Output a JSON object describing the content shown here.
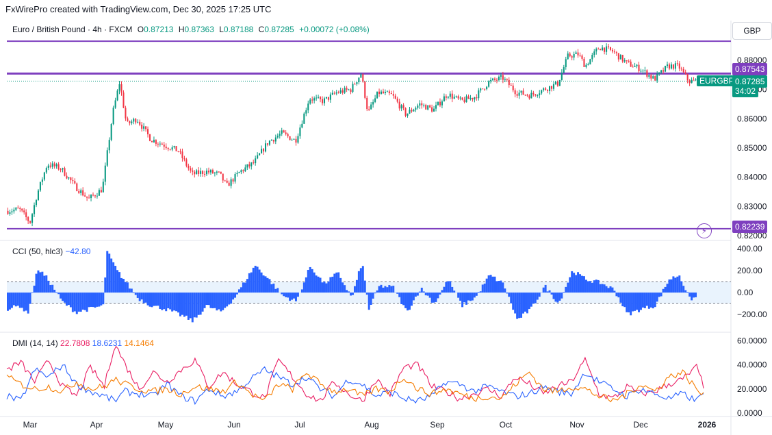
{
  "credit": "FxWirePro created with TradingView.com, Dec 30, 2025 17:25 UTC",
  "legend": {
    "symbol": "Euro / British Pound · 4h · FXCM",
    "o_label": "O",
    "o_value": "0.87213",
    "h_label": "H",
    "h_value": "0.87363",
    "l_label": "L",
    "l_value": "0.87188",
    "c_label": "C",
    "c_value": "0.87285",
    "change": "+0.00072 (+0.08%)"
  },
  "currency_button": "GBP",
  "price_tags": {
    "resistance": "0.87543",
    "current": "0.87285",
    "countdown": "34:02",
    "support": "0.82239",
    "symbol": "EURGBP"
  },
  "colors": {
    "up": "#089981",
    "down": "#f23645",
    "level_line": "#7e3fbf",
    "cci": "#2962ff",
    "dmi_plus": "#2962ff",
    "dmi_minus": "#e91e63",
    "adx": "#f57c00"
  },
  "cci_legend": {
    "label": "CCI (50, hlc3)",
    "value": "−42.80"
  },
  "dmi_legend": {
    "label": "DMI (14, 14)",
    "minus": "22.7808",
    "plus": "18.6231",
    "adx": "14.1464"
  },
  "chart_data": [
    {
      "type": "candlestick",
      "title": "Euro / British Pound · 4h · FXCM",
      "ylim": [
        0.8205,
        0.887
      ],
      "y_ticks": [
        "0.82000",
        "0.83000",
        "0.84000",
        "0.85000",
        "0.86000",
        "0.87000",
        "0.88000"
      ],
      "x_ticks": [
        "Mar",
        "Apr",
        "May",
        "Jun",
        "Jul",
        "Aug",
        "Sep",
        "Oct",
        "Nov",
        "Dec",
        "2026"
      ],
      "horizontal_levels": [
        0.87543,
        0.82239,
        0.8865
      ],
      "last_price": 0.87285,
      "path_anchors": [
        [
          0.0,
          0.8285
        ],
        [
          0.02,
          0.829
        ],
        [
          0.035,
          0.8245
        ],
        [
          0.045,
          0.834
        ],
        [
          0.06,
          0.8445
        ],
        [
          0.08,
          0.843
        ],
        [
          0.1,
          0.837
        ],
        [
          0.12,
          0.8325
        ],
        [
          0.14,
          0.836
        ],
        [
          0.155,
          0.862
        ],
        [
          0.165,
          0.8725
        ],
        [
          0.175,
          0.858
        ],
        [
          0.19,
          0.86
        ],
        [
          0.21,
          0.853
        ],
        [
          0.23,
          0.851
        ],
        [
          0.25,
          0.849
        ],
        [
          0.27,
          0.841
        ],
        [
          0.29,
          0.842
        ],
        [
          0.31,
          0.841
        ],
        [
          0.32,
          0.837
        ],
        [
          0.34,
          0.842
        ],
        [
          0.36,
          0.845
        ],
        [
          0.38,
          0.852
        ],
        [
          0.4,
          0.855
        ],
        [
          0.42,
          0.8525
        ],
        [
          0.44,
          0.867
        ],
        [
          0.46,
          0.866
        ],
        [
          0.48,
          0.869
        ],
        [
          0.5,
          0.87
        ],
        [
          0.515,
          0.8755
        ],
        [
          0.525,
          0.862
        ],
        [
          0.54,
          0.869
        ],
        [
          0.56,
          0.868
        ],
        [
          0.58,
          0.8615
        ],
        [
          0.6,
          0.865
        ],
        [
          0.62,
          0.863
        ],
        [
          0.64,
          0.8685
        ],
        [
          0.66,
          0.866
        ],
        [
          0.68,
          0.8675
        ],
        [
          0.7,
          0.8725
        ],
        [
          0.72,
          0.874
        ],
        [
          0.74,
          0.869
        ],
        [
          0.76,
          0.868
        ],
        [
          0.78,
          0.87
        ],
        [
          0.8,
          0.872
        ],
        [
          0.815,
          0.8815
        ],
        [
          0.83,
          0.882
        ],
        [
          0.84,
          0.878
        ],
        [
          0.86,
          0.8845
        ],
        [
          0.88,
          0.883
        ],
        [
          0.9,
          0.879
        ],
        [
          0.92,
          0.877
        ],
        [
          0.94,
          0.8735
        ],
        [
          0.96,
          0.878
        ],
        [
          0.975,
          0.878
        ],
        [
          0.99,
          0.8728
        ],
        [
          1.0,
          0.87285
        ]
      ]
    },
    {
      "type": "histogram",
      "title": "CCI (50, hlc3)",
      "ylim": [
        -300,
        420
      ],
      "y_ticks": [
        "400.00",
        "200.00",
        "0.00",
        "−200.00"
      ],
      "band": [
        -100,
        100
      ],
      "last_value": -42.8,
      "path_anchors": [
        [
          0,
          -150
        ],
        [
          0.02,
          -120
        ],
        [
          0.03,
          -200
        ],
        [
          0.045,
          220
        ],
        [
          0.06,
          120
        ],
        [
          0.08,
          -80
        ],
        [
          0.1,
          -180
        ],
        [
          0.12,
          -150
        ],
        [
          0.14,
          -120
        ],
        [
          0.145,
          380
        ],
        [
          0.16,
          200
        ],
        [
          0.19,
          -50
        ],
        [
          0.21,
          -120
        ],
        [
          0.23,
          -150
        ],
        [
          0.25,
          -200
        ],
        [
          0.27,
          -260
        ],
        [
          0.29,
          -120
        ],
        [
          0.31,
          -180
        ],
        [
          0.33,
          -50
        ],
        [
          0.36,
          250
        ],
        [
          0.38,
          120
        ],
        [
          0.4,
          -30
        ],
        [
          0.42,
          -80
        ],
        [
          0.44,
          240
        ],
        [
          0.46,
          80
        ],
        [
          0.48,
          180
        ],
        [
          0.5,
          -50
        ],
        [
          0.515,
          280
        ],
        [
          0.525,
          -150
        ],
        [
          0.54,
          60
        ],
        [
          0.56,
          50
        ],
        [
          0.58,
          -180
        ],
        [
          0.6,
          40
        ],
        [
          0.62,
          -100
        ],
        [
          0.64,
          120
        ],
        [
          0.66,
          -120
        ],
        [
          0.68,
          -40
        ],
        [
          0.7,
          160
        ],
        [
          0.72,
          80
        ],
        [
          0.74,
          -250
        ],
        [
          0.76,
          -150
        ],
        [
          0.78,
          60
        ],
        [
          0.8,
          -100
        ],
        [
          0.82,
          200
        ],
        [
          0.84,
          120
        ],
        [
          0.86,
          90
        ],
        [
          0.88,
          30
        ],
        [
          0.9,
          -200
        ],
        [
          0.92,
          -150
        ],
        [
          0.94,
          -120
        ],
        [
          0.96,
          120
        ],
        [
          0.975,
          160
        ],
        [
          0.99,
          -60
        ],
        [
          1.0,
          -42.8
        ]
      ]
    },
    {
      "type": "line",
      "title": "DMI (14, 14)",
      "ylim": [
        0,
        62
      ],
      "y_ticks": [
        "60.0000",
        "40.0000",
        "20.0000",
        "0.0000"
      ],
      "series": [
        {
          "name": "22.7808",
          "color": "#e91e63",
          "last_value": 22.7808,
          "path_anchors": [
            [
              0,
              36
            ],
            [
              0.02,
              42
            ],
            [
              0.04,
              26
            ],
            [
              0.06,
              44
            ],
            [
              0.08,
              22
            ],
            [
              0.1,
              14
            ],
            [
              0.12,
              38
            ],
            [
              0.14,
              22
            ],
            [
              0.155,
              58
            ],
            [
              0.17,
              40
            ],
            [
              0.19,
              20
            ],
            [
              0.21,
              34
            ],
            [
              0.23,
              26
            ],
            [
              0.25,
              36
            ],
            [
              0.27,
              44
            ],
            [
              0.29,
              22
            ],
            [
              0.31,
              34
            ],
            [
              0.33,
              24
            ],
            [
              0.35,
              18
            ],
            [
              0.37,
              12
            ],
            [
              0.39,
              44
            ],
            [
              0.41,
              30
            ],
            [
              0.43,
              16
            ],
            [
              0.45,
              10
            ],
            [
              0.47,
              26
            ],
            [
              0.49,
              16
            ],
            [
              0.51,
              10
            ],
            [
              0.53,
              28
            ],
            [
              0.55,
              16
            ],
            [
              0.57,
              38
            ],
            [
              0.59,
              40
            ],
            [
              0.61,
              22
            ],
            [
              0.63,
              18
            ],
            [
              0.65,
              12
            ],
            [
              0.67,
              16
            ],
            [
              0.69,
              20
            ],
            [
              0.71,
              14
            ],
            [
              0.73,
              30
            ],
            [
              0.75,
              24
            ],
            [
              0.77,
              16
            ],
            [
              0.79,
              22
            ],
            [
              0.81,
              26
            ],
            [
              0.83,
              44
            ],
            [
              0.85,
              16
            ],
            [
              0.87,
              12
            ],
            [
              0.89,
              22
            ],
            [
              0.91,
              16
            ],
            [
              0.93,
              18
            ],
            [
              0.95,
              24
            ],
            [
              0.97,
              28
            ],
            [
              0.99,
              38
            ],
            [
              1.0,
              22.78
            ]
          ]
        },
        {
          "name": "18.6231",
          "color": "#2962ff",
          "last_value": 18.6231,
          "path_anchors": [
            [
              0,
              14
            ],
            [
              0.02,
              10
            ],
            [
              0.04,
              36
            ],
            [
              0.06,
              30
            ],
            [
              0.08,
              40
            ],
            [
              0.1,
              24
            ],
            [
              0.12,
              18
            ],
            [
              0.14,
              14
            ],
            [
              0.155,
              10
            ],
            [
              0.17,
              18
            ],
            [
              0.19,
              16
            ],
            [
              0.21,
              14
            ],
            [
              0.23,
              24
            ],
            [
              0.25,
              14
            ],
            [
              0.27,
              10
            ],
            [
              0.29,
              20
            ],
            [
              0.31,
              14
            ],
            [
              0.33,
              18
            ],
            [
              0.35,
              28
            ],
            [
              0.37,
              36
            ],
            [
              0.39,
              30
            ],
            [
              0.41,
              24
            ],
            [
              0.43,
              30
            ],
            [
              0.45,
              20
            ],
            [
              0.47,
              14
            ],
            [
              0.49,
              28
            ],
            [
              0.51,
              24
            ],
            [
              0.53,
              14
            ],
            [
              0.55,
              18
            ],
            [
              0.57,
              12
            ],
            [
              0.59,
              10
            ],
            [
              0.61,
              14
            ],
            [
              0.63,
              26
            ],
            [
              0.65,
              24
            ],
            [
              0.67,
              18
            ],
            [
              0.69,
              22
            ],
            [
              0.71,
              18
            ],
            [
              0.73,
              14
            ],
            [
              0.75,
              16
            ],
            [
              0.77,
              22
            ],
            [
              0.79,
              18
            ],
            [
              0.81,
              16
            ],
            [
              0.83,
              34
            ],
            [
              0.85,
              26
            ],
            [
              0.87,
              20
            ],
            [
              0.89,
              14
            ],
            [
              0.91,
              20
            ],
            [
              0.93,
              16
            ],
            [
              0.95,
              12
            ],
            [
              0.97,
              16
            ],
            [
              0.99,
              10
            ],
            [
              1.0,
              18.62
            ]
          ]
        },
        {
          "name": "14.1464",
          "color": "#f57c00",
          "last_value": 14.1464,
          "path_anchors": [
            [
              0,
              30
            ],
            [
              0.02,
              24
            ],
            [
              0.04,
              20
            ],
            [
              0.06,
              22
            ],
            [
              0.08,
              18
            ],
            [
              0.1,
              26
            ],
            [
              0.12,
              20
            ],
            [
              0.14,
              22
            ],
            [
              0.155,
              28
            ],
            [
              0.17,
              24
            ],
            [
              0.19,
              20
            ],
            [
              0.21,
              18
            ],
            [
              0.23,
              20
            ],
            [
              0.25,
              16
            ],
            [
              0.27,
              22
            ],
            [
              0.29,
              20
            ],
            [
              0.31,
              18
            ],
            [
              0.33,
              26
            ],
            [
              0.35,
              16
            ],
            [
              0.37,
              10
            ],
            [
              0.39,
              24
            ],
            [
              0.41,
              20
            ],
            [
              0.43,
              34
            ],
            [
              0.45,
              24
            ],
            [
              0.47,
              18
            ],
            [
              0.49,
              20
            ],
            [
              0.51,
              14
            ],
            [
              0.53,
              20
            ],
            [
              0.55,
              18
            ],
            [
              0.57,
              30
            ],
            [
              0.59,
              20
            ],
            [
              0.61,
              16
            ],
            [
              0.63,
              20
            ],
            [
              0.65,
              16
            ],
            [
              0.67,
              12
            ],
            [
              0.69,
              14
            ],
            [
              0.71,
              12
            ],
            [
              0.73,
              24
            ],
            [
              0.75,
              34
            ],
            [
              0.77,
              20
            ],
            [
              0.79,
              18
            ],
            [
              0.81,
              22
            ],
            [
              0.83,
              20
            ],
            [
              0.85,
              14
            ],
            [
              0.87,
              10
            ],
            [
              0.89,
              16
            ],
            [
              0.91,
              24
            ],
            [
              0.93,
              18
            ],
            [
              0.95,
              30
            ],
            [
              0.97,
              34
            ],
            [
              0.99,
              20
            ],
            [
              1.0,
              14.15
            ]
          ]
        }
      ]
    }
  ]
}
